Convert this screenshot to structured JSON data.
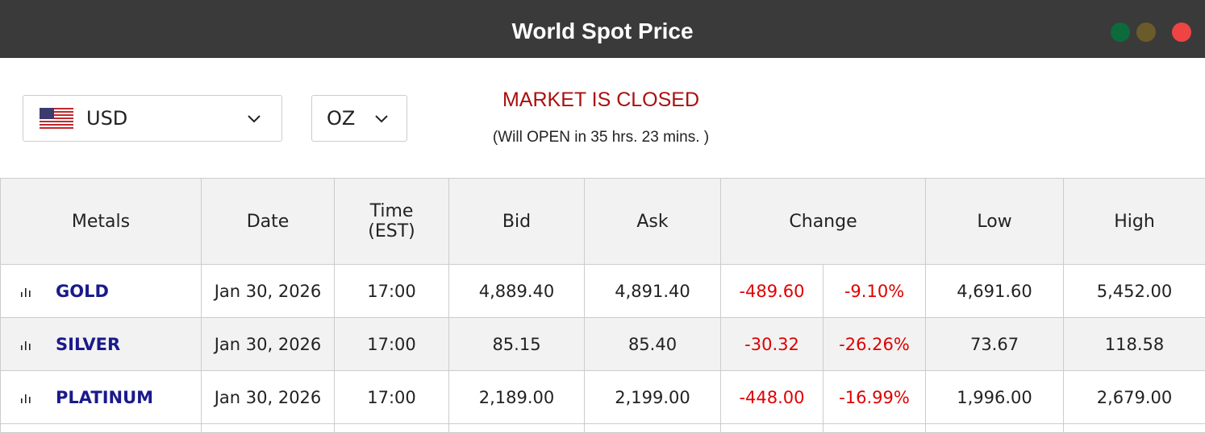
{
  "header": {
    "title": "World Spot Price"
  },
  "controls": {
    "currency": "USD",
    "unit": "OZ"
  },
  "market": {
    "status": "MARKET IS CLOSED",
    "note": "(Will OPEN in 35 hrs. 23 mins. )"
  },
  "table": {
    "headers": [
      "Metals",
      "Date",
      "Time (EST)",
      "Bid",
      "Ask",
      "Change",
      "Low",
      "High"
    ],
    "rows": [
      [
        "GOLD",
        "Jan 30, 2026",
        "17:00",
        "4,889.40",
        "4,891.40",
        "-489.60",
        "-9.10%",
        "4,691.60",
        "5,452.00"
      ],
      [
        "SILVER",
        "Jan 30, 2026",
        "17:00",
        "85.15",
        "85.40",
        "-30.32",
        "-26.26%",
        "73.67",
        "118.58"
      ],
      [
        "PLATINUM",
        "Jan 30, 2026",
        "17:00",
        "2,189.00",
        "2,199.00",
        "-448.00",
        "-16.99%",
        "1,996.00",
        "2,679.00"
      ]
    ]
  }
}
